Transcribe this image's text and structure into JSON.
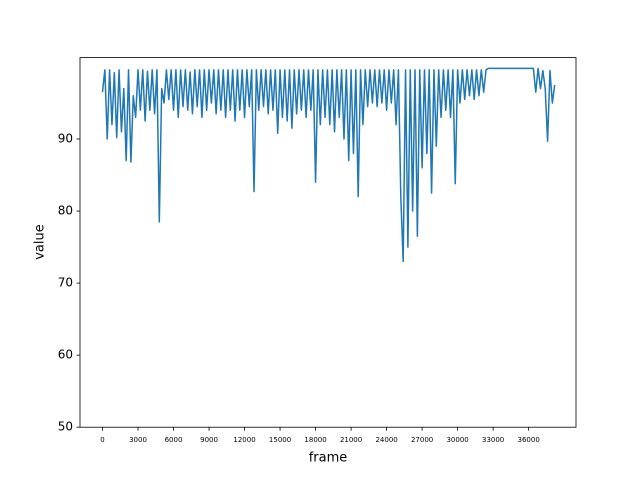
{
  "chart_data": {
    "type": "line",
    "xlabel": "frame",
    "ylabel": "value",
    "color": "#1f77b4",
    "xlim": [
      -1900,
      40000
    ],
    "ylim": [
      50,
      101.3
    ],
    "xticks": [
      0,
      3000,
      6000,
      9000,
      12000,
      15000,
      18000,
      21000,
      24000,
      27000,
      30000,
      33000,
      36000
    ],
    "yticks": [
      50,
      60,
      70,
      80,
      90
    ],
    "x": [
      0,
      200,
      400,
      600,
      800,
      1000,
      1200,
      1400,
      1600,
      1800,
      2000,
      2200,
      2400,
      2600,
      2800,
      3000,
      3200,
      3400,
      3600,
      3800,
      4000,
      4200,
      4400,
      4600,
      4800,
      5000,
      5200,
      5400,
      5600,
      5800,
      6000,
      6200,
      6400,
      6600,
      6800,
      7000,
      7200,
      7400,
      7600,
      7800,
      8000,
      8200,
      8400,
      8600,
      8800,
      9000,
      9200,
      9400,
      9600,
      9800,
      10000,
      10200,
      10400,
      10600,
      10800,
      11000,
      11200,
      11400,
      11600,
      11800,
      12000,
      12200,
      12400,
      12600,
      12800,
      13000,
      13200,
      13400,
      13600,
      13800,
      14000,
      14200,
      14400,
      14600,
      14800,
      15000,
      15200,
      15400,
      15600,
      15800,
      16000,
      16200,
      16400,
      16600,
      16800,
      17000,
      17200,
      17400,
      17600,
      17800,
      18000,
      18200,
      18400,
      18600,
      18800,
      19000,
      19200,
      19400,
      19600,
      19800,
      20000,
      20200,
      20400,
      20600,
      20800,
      21000,
      21200,
      21400,
      21600,
      21800,
      22000,
      22200,
      22400,
      22600,
      22800,
      23000,
      23200,
      23400,
      23600,
      23800,
      24000,
      24200,
      24400,
      24600,
      24800,
      25000,
      25200,
      25400,
      25600,
      25800,
      26000,
      26200,
      26400,
      26600,
      26800,
      27000,
      27200,
      27400,
      27600,
      27800,
      28000,
      28200,
      28400,
      28600,
      28800,
      29000,
      29200,
      29400,
      29600,
      29800,
      30000,
      30200,
      30400,
      30600,
      30800,
      31000,
      31200,
      31400,
      31600,
      31800,
      32000,
      32200,
      32400,
      32600,
      33000,
      34000,
      35000,
      36000,
      36400,
      36600,
      36800,
      37000,
      37200,
      37400,
      37600,
      37800,
      38000,
      38200
    ],
    "values": [
      96.5,
      99.6,
      90,
      99.6,
      92,
      99.2,
      90.2,
      99.6,
      91,
      97,
      87,
      99.6,
      86.8,
      96,
      93,
      99.6,
      94,
      99.6,
      92.5,
      99.4,
      94,
      99.6,
      93.5,
      99.6,
      78.5,
      97,
      95,
      99.6,
      95.5,
      99.6,
      94,
      99.6,
      93,
      99.6,
      94.5,
      99.6,
      94,
      99.3,
      93.5,
      99.6,
      94.5,
      99.6,
      93,
      99.6,
      94,
      99.6,
      95,
      99.6,
      93.5,
      99.6,
      94,
      99.6,
      93,
      99.6,
      94,
      99.6,
      92.5,
      99.6,
      94,
      99.6,
      93,
      99.6,
      94.5,
      99.6,
      82.7,
      99.6,
      94,
      99.6,
      94.5,
      99.6,
      93.5,
      99.6,
      94,
      99.6,
      90.8,
      99.6,
      93,
      99.6,
      92.5,
      99.6,
      91.5,
      99.6,
      93.5,
      99.6,
      94,
      99.6,
      93,
      99.6,
      94,
      99.6,
      84,
      99.6,
      92,
      99.6,
      93,
      99.6,
      92,
      99.6,
      91,
      99.6,
      93,
      99.6,
      90,
      99.6,
      87,
      99.6,
      88,
      99.6,
      82,
      99.6,
      92,
      99.6,
      94.5,
      99.6,
      95,
      99.6,
      94.5,
      99.6,
      95,
      99.6,
      94,
      99.6,
      95,
      99.6,
      92,
      99.6,
      82,
      73,
      99.6,
      75,
      99.6,
      80,
      99.6,
      76.5,
      99.6,
      86,
      99.6,
      88,
      99.6,
      82.5,
      99.6,
      89,
      99.6,
      93,
      99.6,
      94,
      99.6,
      93,
      99.6,
      83.8,
      99.6,
      95,
      99.6,
      95.5,
      99.6,
      96,
      99.6,
      95.5,
      99.6,
      96,
      99.6,
      96.5,
      99.6,
      99.8,
      99.8,
      99.8,
      99.8,
      99.8,
      99.8,
      96.5,
      99.8,
      97,
      99.5,
      97,
      89.7,
      99.5,
      95,
      97.5
    ]
  }
}
